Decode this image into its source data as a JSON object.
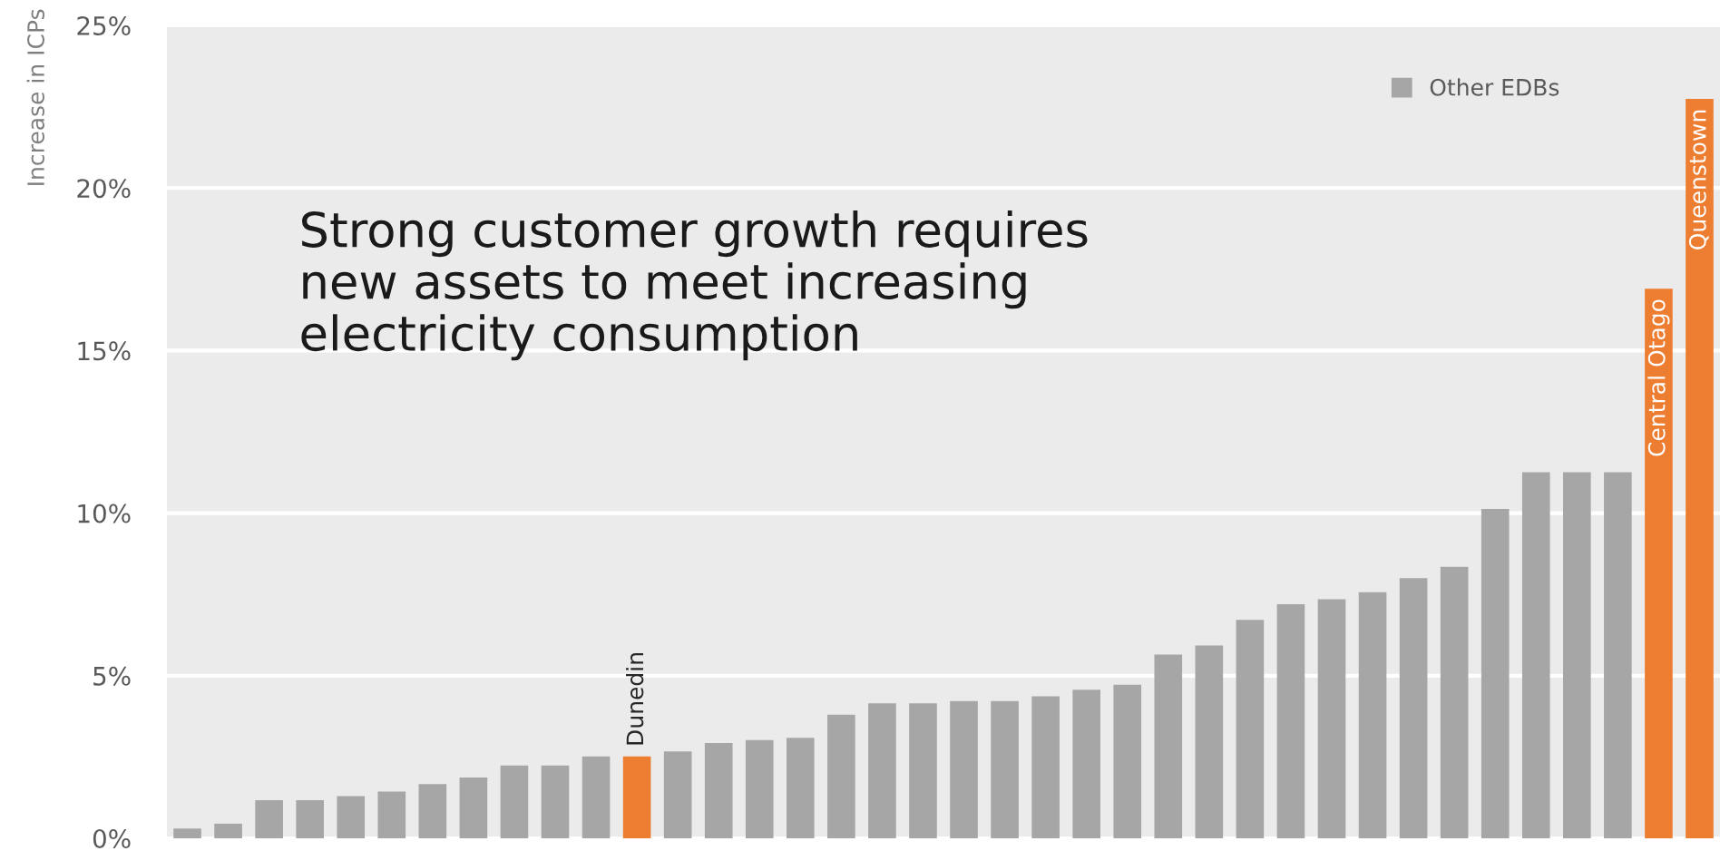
{
  "chart_data": {
    "type": "bar",
    "ylabel": "Increase in ICPs",
    "categories": [
      null,
      null,
      null,
      null,
      null,
      null,
      null,
      null,
      null,
      null,
      null,
      "Dunedin",
      null,
      null,
      null,
      null,
      null,
      null,
      null,
      null,
      null,
      null,
      null,
      null,
      null,
      null,
      null,
      null,
      null,
      null,
      null,
      null,
      null,
      null,
      null,
      null,
      "Central Otago",
      "Queenstown"
    ],
    "series": [
      {
        "name": "Other EDBs",
        "color": "#a6a6a6",
        "values": [
          0.3,
          0.45,
          1.17,
          1.17,
          1.3,
          1.44,
          1.67,
          1.87,
          2.24,
          2.24,
          2.52,
          null,
          2.67,
          2.93,
          3.02,
          3.09,
          3.8,
          4.15,
          4.15,
          4.22,
          4.22,
          4.37,
          4.57,
          4.72,
          5.65,
          5.93,
          6.72,
          7.2,
          7.35,
          7.57,
          8.0,
          8.35,
          10.13,
          11.26,
          11.26,
          11.26,
          null,
          null
        ]
      },
      {
        "color": "#ed7d31",
        "values": [
          null,
          null,
          null,
          null,
          null,
          null,
          null,
          null,
          null,
          null,
          null,
          2.52,
          null,
          null,
          null,
          null,
          null,
          null,
          null,
          null,
          null,
          null,
          null,
          null,
          null,
          null,
          null,
          null,
          null,
          null,
          null,
          null,
          null,
          null,
          null,
          null,
          16.9,
          22.74
        ]
      }
    ],
    "ylim": [
      0,
      25
    ],
    "yticks": [
      {
        "value": 0,
        "label": "0%"
      },
      {
        "value": 5,
        "label": "5%"
      },
      {
        "value": 10,
        "label": "10%"
      },
      {
        "value": 15,
        "label": "15%"
      },
      {
        "value": 20,
        "label": "20%"
      },
      {
        "value": 25,
        "label": "25%"
      }
    ],
    "grid": "y",
    "legend": "top right",
    "annotations": [
      "Strong customer growth requires\nnew assets to meet increasing\nelectricity consumption"
    ]
  }
}
